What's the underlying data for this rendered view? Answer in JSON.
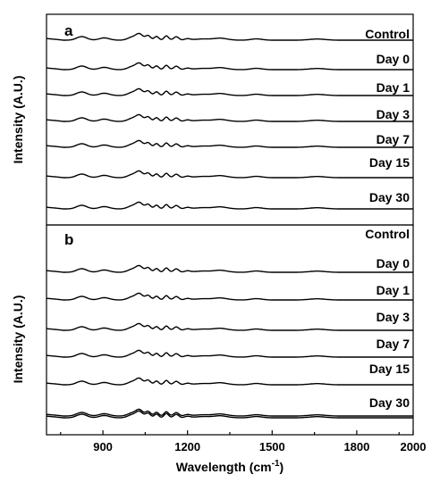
{
  "chart_data": [
    {
      "type": "line",
      "panel_label": "a",
      "ylabel": "Intensity (A.U.)",
      "xlim": [
        700,
        2000
      ],
      "series": [
        {
          "name": "Control"
        },
        {
          "name": "Day 0"
        },
        {
          "name": "Day 1"
        },
        {
          "name": "Day 3"
        },
        {
          "name": "Day 7"
        },
        {
          "name": "Day 15"
        },
        {
          "name": "Day 30"
        }
      ]
    },
    {
      "type": "line",
      "panel_label": "b",
      "ylabel": "Intensity (A.U.)",
      "xlabel": "Wavelength (cm-1)",
      "xlabel_main": "Wavelength (cm",
      "xlabel_sup": "-1",
      "xlabel_close": ")",
      "xlim": [
        700,
        2000
      ],
      "xticks": [
        900,
        1200,
        1500,
        1800,
        2000
      ],
      "xtick_labels": [
        "900",
        "1200",
        "1500",
        "1800",
        "2000"
      ],
      "series": [
        {
          "name": "Control"
        },
        {
          "name": "Day 0"
        },
        {
          "name": "Day 1"
        },
        {
          "name": "Day 3"
        },
        {
          "name": "Day 7"
        },
        {
          "name": "Day 15"
        },
        {
          "name": "Day 30"
        }
      ]
    }
  ]
}
